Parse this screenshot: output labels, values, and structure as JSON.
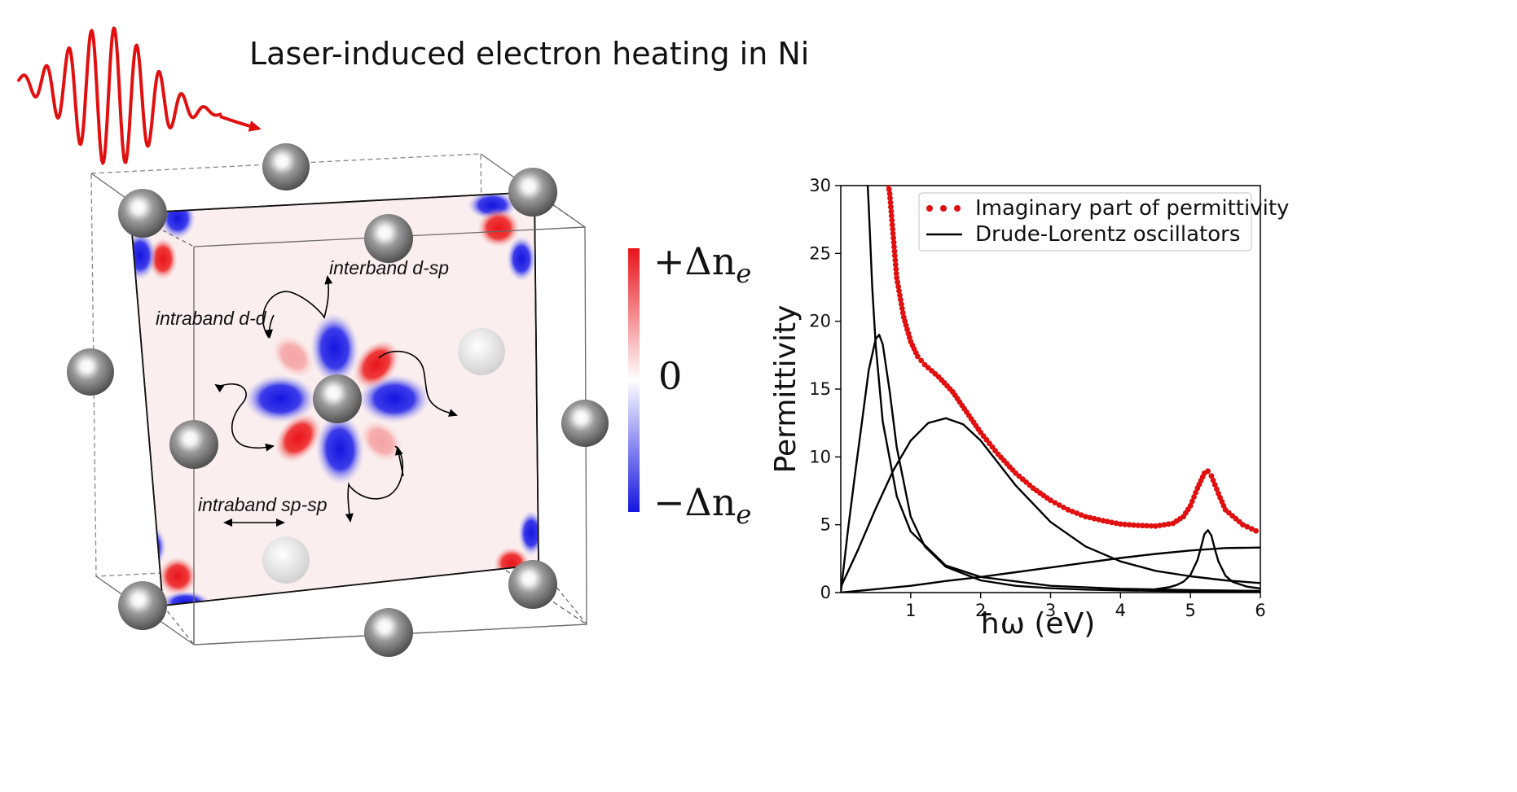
{
  "title": "Laser-induced electron heating in Ni",
  "annotations": {
    "interband": "interband d-sp",
    "intraband_dd": "intraband d-d",
    "intraband_spsp": "intraband sp-sp"
  },
  "colorbar": {
    "top": "+Δn",
    "bottom": "−Δn",
    "subscript": "e",
    "middle": "0",
    "colors": {
      "positive": "#e8141b",
      "negative": "#1414e0"
    }
  },
  "chart_data": {
    "type": "line",
    "title": "",
    "xlabel": "ħω (eV)",
    "ylabel": "Permittivity",
    "xlim": [
      0,
      6
    ],
    "ylim": [
      0,
      30
    ],
    "xticks": [
      "1",
      "2",
      "3",
      "4",
      "5",
      "6"
    ],
    "yticks": [
      "0",
      "5",
      "10",
      "15",
      "20",
      "25",
      "30"
    ],
    "legend_placement": "top-right",
    "series": [
      {
        "name": "Imaginary part of permittivity",
        "style": "dotted",
        "color": "#e01010",
        "x": [
          0.65,
          0.7,
          0.8,
          0.9,
          1.0,
          1.1,
          1.2,
          1.4,
          1.6,
          1.8,
          2.0,
          2.25,
          2.5,
          2.75,
          3.0,
          3.25,
          3.5,
          3.75,
          4.0,
          4.25,
          4.5,
          4.75,
          4.9,
          5.0,
          5.1,
          5.2,
          5.25,
          5.3,
          5.4,
          5.5,
          5.75,
          6.0
        ],
        "y": [
          31.0,
          29.4,
          23.2,
          20.3,
          18.5,
          17.4,
          16.8,
          15.9,
          14.8,
          13.3,
          11.8,
          10.2,
          8.8,
          7.7,
          6.8,
          6.1,
          5.6,
          5.3,
          5.05,
          4.95,
          4.9,
          5.1,
          5.6,
          6.4,
          7.7,
          8.8,
          8.95,
          8.6,
          7.3,
          6.1,
          5.0,
          4.4
        ]
      },
      {
        "name": "Drude-Lorentz oscillators",
        "style": "solid",
        "color": "#000000",
        "curves": [
          {
            "x": [
              0.38,
              0.4,
              0.45,
              0.5,
              0.6,
              0.8,
              1.0,
              1.5,
              2.0,
              3.0,
              4.0,
              5.0,
              6.0
            ],
            "y": [
              30.5,
              28.5,
              22.5,
              18.2,
              12.6,
              7.1,
              4.5,
              2.0,
              1.15,
              0.5,
              0.28,
              0.18,
              0.12
            ]
          },
          {
            "x": [
              0.0,
              0.1,
              0.2,
              0.3,
              0.4,
              0.5,
              0.55,
              0.6,
              0.7,
              0.8,
              1.0,
              1.2,
              1.5,
              2.0,
              2.5,
              3.0,
              3.5,
              4.0,
              5.0,
              6.0
            ],
            "y": [
              0.0,
              4.5,
              8.6,
              12.5,
              16.4,
              18.7,
              19.0,
              18.3,
              14.8,
              10.7,
              5.6,
              3.4,
              1.9,
              0.9,
              0.5,
              0.32,
              0.22,
              0.16,
              0.09,
              0.06
            ]
          },
          {
            "x": [
              0.0,
              0.25,
              0.5,
              0.75,
              1.0,
              1.25,
              1.5,
              1.75,
              2.0,
              2.5,
              3.0,
              3.5,
              4.0,
              4.5,
              5.0,
              5.5,
              6.0
            ],
            "y": [
              0.4,
              3.2,
              6.2,
              9.0,
              11.2,
              12.5,
              12.85,
              12.4,
              11.2,
              7.9,
              5.2,
              3.4,
              2.3,
              1.6,
              1.2,
              0.9,
              0.7
            ]
          },
          {
            "x": [
              0.0,
              0.5,
              1.0,
              1.5,
              2.0,
              2.5,
              3.0,
              3.5,
              4.0,
              4.5,
              5.0,
              5.5,
              6.0
            ],
            "y": [
              0.0,
              0.25,
              0.5,
              0.85,
              1.15,
              1.5,
              1.85,
              2.2,
              2.55,
              2.85,
              3.1,
              3.28,
              3.32
            ]
          },
          {
            "x": [
              4.5,
              4.7,
              4.8,
              4.9,
              5.0,
              5.1,
              5.15,
              5.2,
              5.25,
              5.3,
              5.35,
              5.4,
              5.5,
              5.6,
              5.8,
              6.0
            ],
            "y": [
              0.25,
              0.4,
              0.55,
              0.8,
              1.3,
              2.4,
              3.3,
              4.3,
              4.6,
              4.2,
              3.2,
              2.3,
              1.25,
              0.8,
              0.45,
              0.3
            ]
          }
        ]
      }
    ]
  }
}
